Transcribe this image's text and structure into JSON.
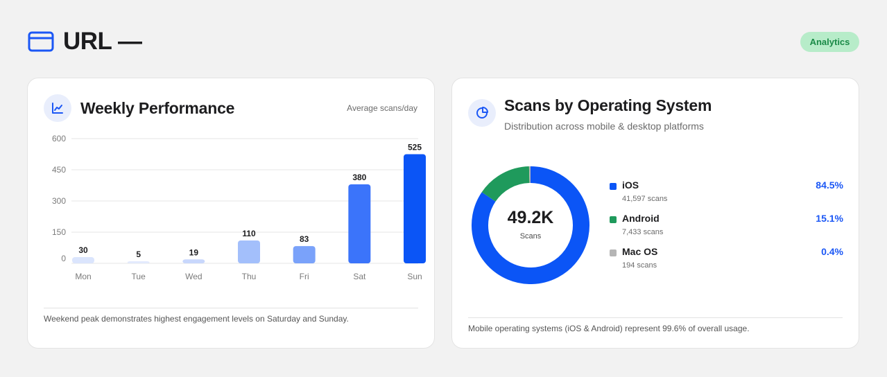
{
  "header": {
    "title": "URL —",
    "badge": "Analytics",
    "icon": "browser-window-icon"
  },
  "weekly": {
    "title": "Weekly Performance",
    "meta": "Average scans/day",
    "icon": "line-chart-icon",
    "footnote": "Weekend peak demonstrates highest engagement levels on Saturday and Sunday."
  },
  "chart_data": {
    "type": "bar",
    "categories": [
      "Mon",
      "Tue",
      "Wed",
      "Thu",
      "Fri",
      "Sat",
      "Sun"
    ],
    "values": [
      30,
      5,
      19,
      110,
      83,
      380,
      525
    ],
    "yticks": [
      0,
      150,
      300,
      450,
      600
    ],
    "ylim": [
      0,
      600
    ],
    "bar_colors": [
      "#dbe5fd",
      "#e3eafd",
      "#c8d7fc",
      "#a3bffb",
      "#7aa2fa",
      "#3b74fa",
      "#0b55f6"
    ],
    "title": "",
    "xlabel": "",
    "ylabel": "",
    "grid": true
  },
  "os": {
    "title": "Scans by Operating System",
    "subtitle": "Distribution across mobile & desktop platforms",
    "icon": "pie-chart-icon",
    "total_value": "49.2K",
    "total_label": "Scans",
    "footnote": "Mobile operating systems (iOS & Android) represent 99.6% of overall usage.",
    "items": [
      {
        "name": "iOS",
        "count": "41,597 scans",
        "pct": "84.5%",
        "value": 84.5,
        "color": "#0b55f6"
      },
      {
        "name": "Android",
        "count": "7,433 scans",
        "pct": "15.1%",
        "value": 15.1,
        "color": "#1f9a5c"
      },
      {
        "name": "Mac OS",
        "count": "194 scans",
        "pct": "0.4%",
        "value": 0.4,
        "color": "#b5b5b5"
      }
    ]
  }
}
